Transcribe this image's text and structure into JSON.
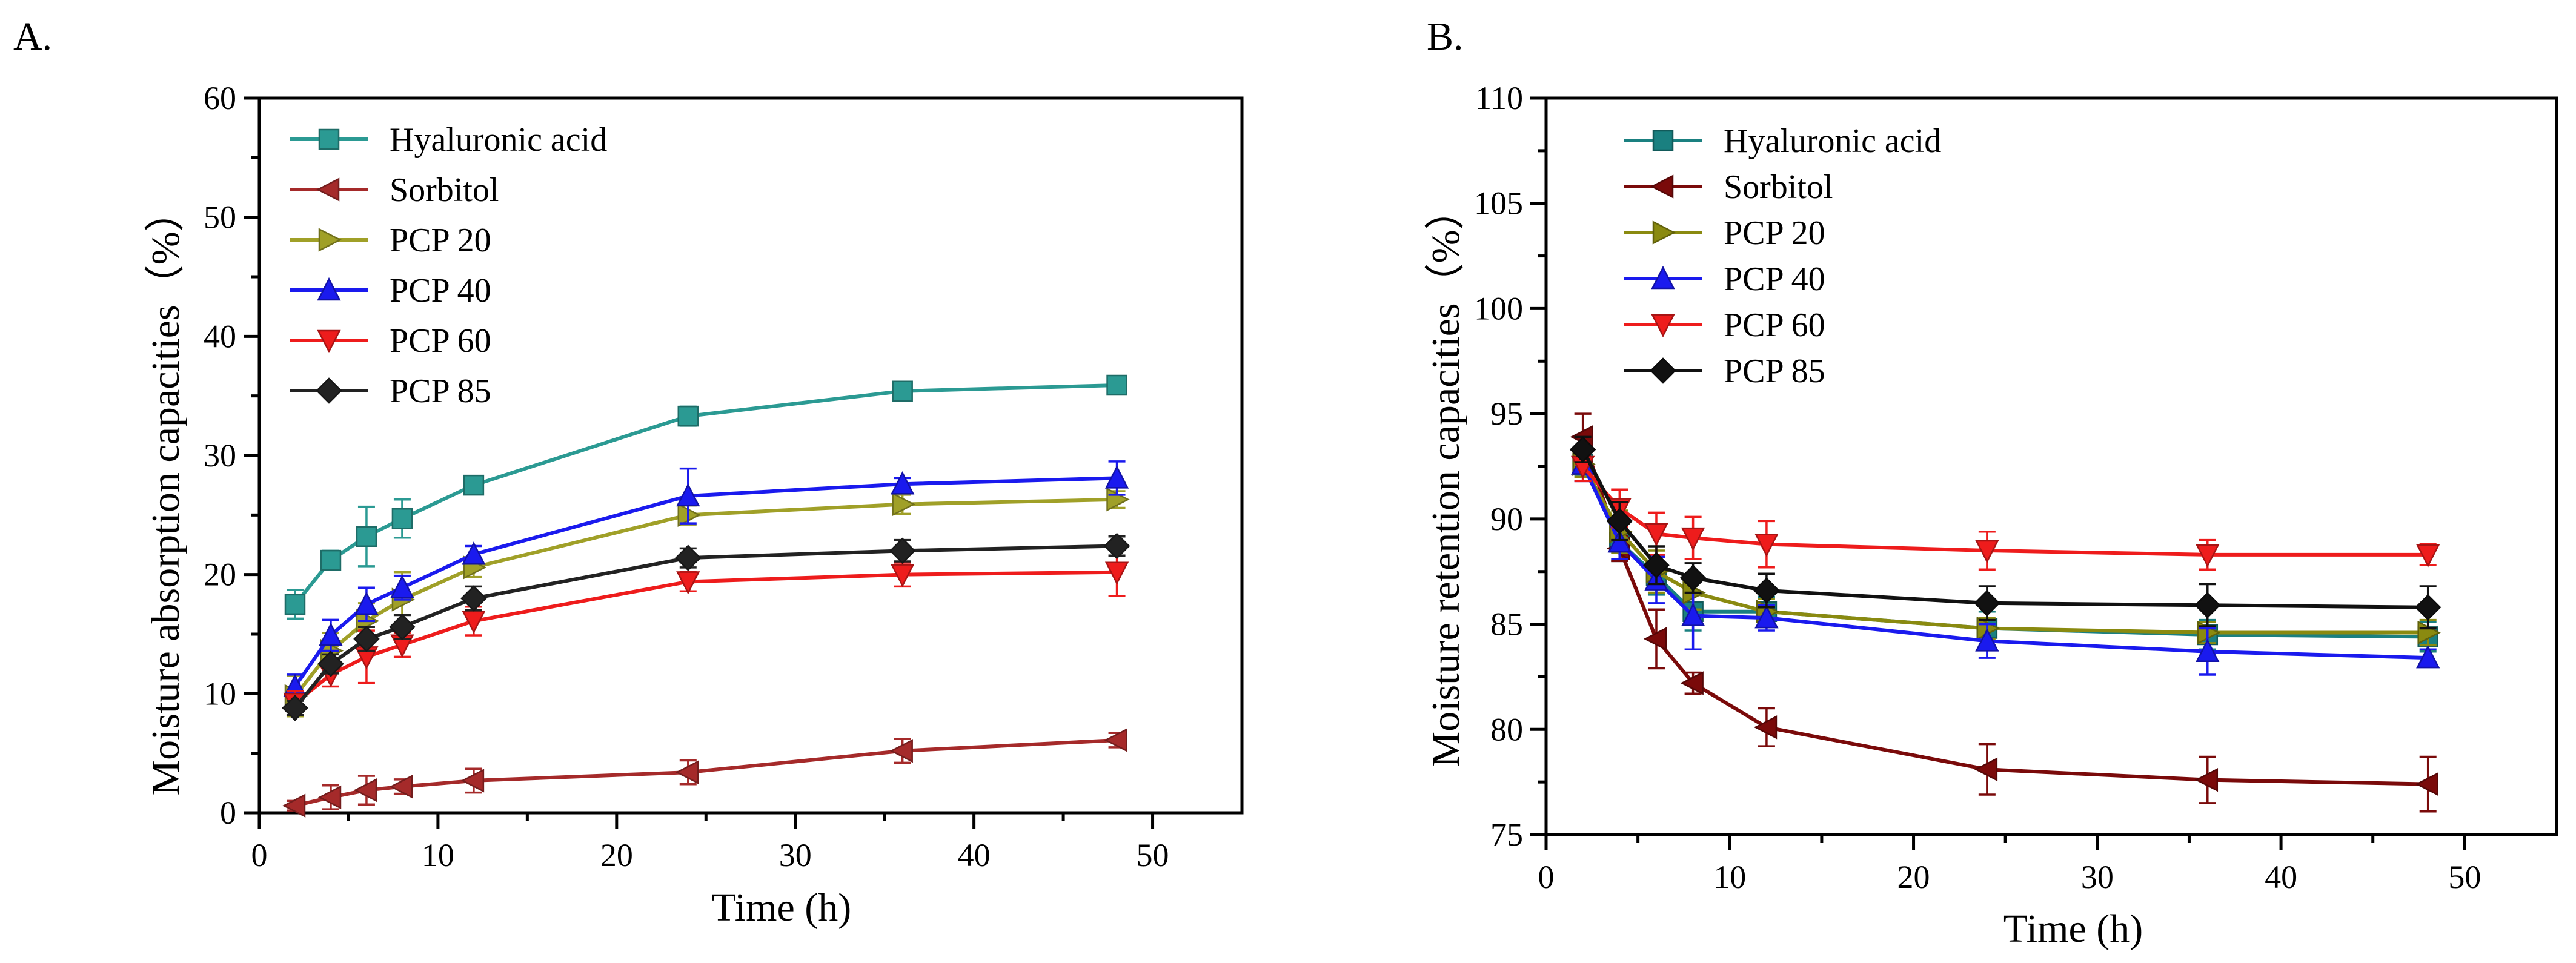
{
  "chart_data": [
    {
      "panel_label": "A.",
      "type": "line",
      "xlabel": "Time (h)",
      "ylabel": "Moisture absorption capacities（%）",
      "xlim": [
        0,
        55
      ],
      "ylim": [
        0,
        60
      ],
      "xticks": [
        "0",
        "10",
        "20",
        "30",
        "40",
        "50"
      ],
      "yticks": [
        "0",
        "10",
        "20",
        "30",
        "40",
        "50",
        "60"
      ],
      "x": [
        2,
        4,
        6,
        8,
        12,
        24,
        36,
        48
      ],
      "legend_position": "top-left",
      "series": [
        {
          "name": "Hyaluronic acid",
          "color": "#2b9a93",
          "marker": "square",
          "values": [
            17.5,
            21.2,
            23.2,
            24.7,
            27.5,
            33.3,
            35.4,
            35.9
          ],
          "errors": [
            1.2,
            0.8,
            2.5,
            1.6,
            0.6,
            0.8,
            0.6,
            0.7
          ]
        },
        {
          "name": "Sorbitol",
          "color": "#a52a2a",
          "marker": "triangle-left",
          "values": [
            0.6,
            1.3,
            1.9,
            2.2,
            2.7,
            3.4,
            5.2,
            6.1
          ],
          "errors": [
            0.4,
            1.0,
            1.2,
            0.6,
            1.0,
            1.0,
            1.0,
            0.6
          ]
        },
        {
          "name": "PCP 20",
          "color": "#a0a028",
          "marker": "triangle-right",
          "values": [
            9.8,
            13.6,
            16.1,
            17.9,
            20.6,
            25.0,
            25.9,
            26.3
          ],
          "errors": [
            1.7,
            1.5,
            1.5,
            2.3,
            0.8,
            0.8,
            0.8,
            0.7
          ]
        },
        {
          "name": "PCP 40",
          "color": "#1a1aee",
          "marker": "triangle-up",
          "values": [
            10.6,
            14.9,
            17.5,
            18.9,
            21.7,
            26.6,
            27.6,
            28.1
          ],
          "errors": [
            1.0,
            1.3,
            1.4,
            1.0,
            0.7,
            2.3,
            0.5,
            1.4
          ]
        },
        {
          "name": "PCP 60",
          "color": "#ee1c1c",
          "marker": "triangle-down",
          "values": [
            9.2,
            11.6,
            13.1,
            14.1,
            16.1,
            19.4,
            20.0,
            20.2
          ],
          "errors": [
            1.0,
            1.0,
            2.2,
            1.0,
            1.2,
            0.8,
            1.0,
            2.0
          ]
        },
        {
          "name": "PCP 85",
          "color": "#222222",
          "marker": "diamond",
          "values": [
            8.8,
            12.5,
            14.6,
            15.6,
            18.0,
            21.4,
            22.0,
            22.4
          ],
          "errors": [
            0.6,
            0.8,
            1.0,
            1.0,
            1.0,
            0.8,
            0.9,
            0.8
          ]
        }
      ]
    },
    {
      "panel_label": "B.",
      "type": "line",
      "xlabel": "Time (h)",
      "ylabel": "Moisture retention capacities（%）",
      "xlim": [
        0,
        55
      ],
      "ylim": [
        75,
        110
      ],
      "xticks": [
        "0",
        "10",
        "20",
        "30",
        "40",
        "50"
      ],
      "yticks": [
        "75",
        "80",
        "85",
        "90",
        "95",
        "100",
        "105",
        "110"
      ],
      "x": [
        2,
        4,
        6,
        8,
        12,
        24,
        36,
        48
      ],
      "legend_position": "top-left",
      "series": [
        {
          "name": "Hyaluronic acid",
          "color": "#1a8080",
          "marker": "square",
          "values": [
            92.6,
            88.9,
            87.3,
            85.6,
            85.6,
            84.8,
            84.5,
            84.4
          ],
          "errors": [
            0.5,
            0.9,
            0.9,
            0.9,
            0.7,
            0.8,
            0.7,
            0.7
          ]
        },
        {
          "name": "Sorbitol",
          "color": "#7a0a0a",
          "marker": "triangle-left",
          "values": [
            93.9,
            88.6,
            84.3,
            82.2,
            80.1,
            78.1,
            77.6,
            77.4
          ],
          "errors": [
            1.1,
            0.6,
            1.4,
            0.5,
            0.9,
            1.2,
            1.1,
            1.3
          ]
        },
        {
          "name": "PCP 20",
          "color": "#8a8a10",
          "marker": "triangle-right",
          "values": [
            92.6,
            89.4,
            87.5,
            86.5,
            85.6,
            84.8,
            84.6,
            84.6
          ],
          "errors": [
            0.6,
            1.0,
            1.0,
            0.8,
            0.6,
            0.5,
            0.5,
            0.6
          ]
        },
        {
          "name": "PCP 40",
          "color": "#1a1aee",
          "marker": "triangle-up",
          "values": [
            92.6,
            88.9,
            87.1,
            85.4,
            85.3,
            84.2,
            83.7,
            83.4
          ],
          "errors": [
            0.8,
            0.8,
            1.1,
            1.6,
            0.6,
            0.8,
            1.1,
            0.4
          ]
        },
        {
          "name": "PCP 60",
          "color": "#ee1c1c",
          "marker": "triangle-down",
          "values": [
            92.5,
            90.5,
            89.3,
            89.1,
            88.8,
            88.5,
            88.3,
            88.3
          ],
          "errors": [
            0.7,
            0.9,
            1.0,
            1.0,
            1.1,
            0.9,
            0.7,
            0.5
          ]
        },
        {
          "name": "PCP 85",
          "color": "#111111",
          "marker": "diamond",
          "values": [
            93.3,
            89.9,
            87.8,
            87.2,
            86.6,
            86.0,
            85.9,
            85.8
          ],
          "errors": [
            0.6,
            0.9,
            0.9,
            0.7,
            0.8,
            0.8,
            1.0,
            1.0
          ]
        }
      ]
    }
  ]
}
